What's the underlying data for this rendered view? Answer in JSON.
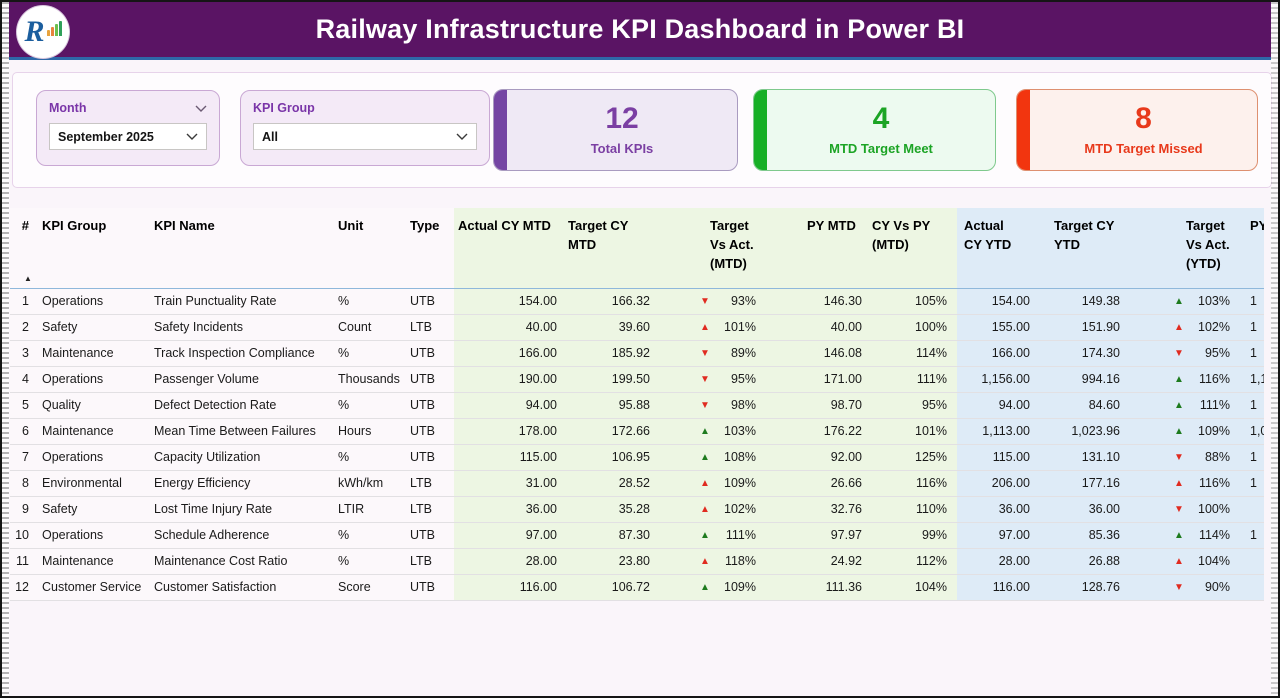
{
  "header": {
    "title": "Railway Infrastructure KPI Dashboard in Power BI",
    "logo_letter": "R"
  },
  "filters": {
    "month": {
      "label": "Month",
      "value": "September 2025"
    },
    "kpi_group": {
      "label": "KPI Group",
      "value": "All"
    }
  },
  "cards": [
    {
      "value": "12",
      "label": "Total KPIs",
      "accent": "#7445A3"
    },
    {
      "value": "4",
      "label": "MTD Target Meet",
      "accent": "#17AF26"
    },
    {
      "value": "8",
      "label": "MTD Target Missed",
      "accent": "#F2350F"
    }
  ],
  "colors": {
    "header_bg": "#5A1464",
    "header_underline": "#2E68A8",
    "mtd_section_bg": "#EDF6E3",
    "ytd_section_bg": "#DEEBF7",
    "arrow_green": "#1E7B1E",
    "arrow_red": "#E02B20"
  },
  "table": {
    "sort_indicator": "▲",
    "icons": {
      "up": "▲",
      "down": "▼"
    },
    "columns": [
      {
        "label": "#"
      },
      {
        "label": "KPI Group"
      },
      {
        "label": "KPI Name"
      },
      {
        "label": "Unit"
      },
      {
        "label": "Type"
      },
      {
        "label": "Actual CY MTD"
      },
      {
        "label": "Target CY MTD"
      },
      {
        "label": "Target Vs Act. (MTD)"
      },
      {
        "label": "PY MTD"
      },
      {
        "label": "CY Vs PY (MTD)"
      },
      {
        "label": "Actual CY YTD"
      },
      {
        "label": "Target CY YTD"
      },
      {
        "label": "Target Vs Act. (YTD)"
      },
      {
        "label": "PY"
      }
    ],
    "rows": [
      {
        "num": "1",
        "group": "Operations",
        "name": "Train Punctuality Rate",
        "unit": "%",
        "type": "UTB",
        "actual_mtd": "154.00",
        "target_mtd": "166.32",
        "tva_mtd": {
          "dir": "down",
          "color": "red",
          "value": "93%"
        },
        "py_mtd": "146.30",
        "cy_vs_py_mtd": "105%",
        "actual_ytd": "154.00",
        "target_ytd": "149.38",
        "tva_ytd": {
          "dir": "up",
          "color": "green",
          "value": "103%"
        },
        "py_ytd": "1"
      },
      {
        "num": "2",
        "group": "Safety",
        "name": "Safety Incidents",
        "unit": "Count",
        "type": "LTB",
        "actual_mtd": "40.00",
        "target_mtd": "39.60",
        "tva_mtd": {
          "dir": "up",
          "color": "red",
          "value": "101%"
        },
        "py_mtd": "40.00",
        "cy_vs_py_mtd": "100%",
        "actual_ytd": "155.00",
        "target_ytd": "151.90",
        "tva_ytd": {
          "dir": "up",
          "color": "red",
          "value": "102%"
        },
        "py_ytd": "1"
      },
      {
        "num": "3",
        "group": "Maintenance",
        "name": "Track Inspection Compliance",
        "unit": "%",
        "type": "UTB",
        "actual_mtd": "166.00",
        "target_mtd": "185.92",
        "tva_mtd": {
          "dir": "down",
          "color": "red",
          "value": "89%"
        },
        "py_mtd": "146.08",
        "cy_vs_py_mtd": "114%",
        "actual_ytd": "166.00",
        "target_ytd": "174.30",
        "tva_ytd": {
          "dir": "down",
          "color": "red",
          "value": "95%"
        },
        "py_ytd": "1"
      },
      {
        "num": "4",
        "group": "Operations",
        "name": "Passenger Volume",
        "unit": "Thousands",
        "type": "UTB",
        "actual_mtd": "190.00",
        "target_mtd": "199.50",
        "tva_mtd": {
          "dir": "down",
          "color": "red",
          "value": "95%"
        },
        "py_mtd": "171.00",
        "cy_vs_py_mtd": "111%",
        "actual_ytd": "1,156.00",
        "target_ytd": "994.16",
        "tva_ytd": {
          "dir": "up",
          "color": "green",
          "value": "116%"
        },
        "py_ytd": "1,1"
      },
      {
        "num": "5",
        "group": "Quality",
        "name": "Defect Detection Rate",
        "unit": "%",
        "type": "UTB",
        "actual_mtd": "94.00",
        "target_mtd": "95.88",
        "tva_mtd": {
          "dir": "down",
          "color": "red",
          "value": "98%"
        },
        "py_mtd": "98.70",
        "cy_vs_py_mtd": "95%",
        "actual_ytd": "94.00",
        "target_ytd": "84.60",
        "tva_ytd": {
          "dir": "up",
          "color": "green",
          "value": "111%"
        },
        "py_ytd": "1"
      },
      {
        "num": "6",
        "group": "Maintenance",
        "name": "Mean Time Between Failures",
        "unit": "Hours",
        "type": "UTB",
        "actual_mtd": "178.00",
        "target_mtd": "172.66",
        "tva_mtd": {
          "dir": "up",
          "color": "green",
          "value": "103%"
        },
        "py_mtd": "176.22",
        "cy_vs_py_mtd": "101%",
        "actual_ytd": "1,113.00",
        "target_ytd": "1,023.96",
        "tva_ytd": {
          "dir": "up",
          "color": "green",
          "value": "109%"
        },
        "py_ytd": "1,0"
      },
      {
        "num": "7",
        "group": "Operations",
        "name": "Capacity Utilization",
        "unit": "%",
        "type": "UTB",
        "actual_mtd": "115.00",
        "target_mtd": "106.95",
        "tva_mtd": {
          "dir": "up",
          "color": "green",
          "value": "108%"
        },
        "py_mtd": "92.00",
        "cy_vs_py_mtd": "125%",
        "actual_ytd": "115.00",
        "target_ytd": "131.10",
        "tva_ytd": {
          "dir": "down",
          "color": "red",
          "value": "88%"
        },
        "py_ytd": "1"
      },
      {
        "num": "8",
        "group": "Environmental",
        "name": "Energy Efficiency",
        "unit": "kWh/km",
        "type": "LTB",
        "actual_mtd": "31.00",
        "target_mtd": "28.52",
        "tva_mtd": {
          "dir": "up",
          "color": "red",
          "value": "109%"
        },
        "py_mtd": "26.66",
        "cy_vs_py_mtd": "116%",
        "actual_ytd": "206.00",
        "target_ytd": "177.16",
        "tva_ytd": {
          "dir": "up",
          "color": "red",
          "value": "116%"
        },
        "py_ytd": "1"
      },
      {
        "num": "9",
        "group": "Safety",
        "name": "Lost Time Injury Rate",
        "unit": "LTIR",
        "type": "LTB",
        "actual_mtd": "36.00",
        "target_mtd": "35.28",
        "tva_mtd": {
          "dir": "up",
          "color": "red",
          "value": "102%"
        },
        "py_mtd": "32.76",
        "cy_vs_py_mtd": "110%",
        "actual_ytd": "36.00",
        "target_ytd": "36.00",
        "tva_ytd": {
          "dir": "down",
          "color": "red",
          "value": "100%"
        },
        "py_ytd": ""
      },
      {
        "num": "10",
        "group": "Operations",
        "name": "Schedule Adherence",
        "unit": "%",
        "type": "UTB",
        "actual_mtd": "97.00",
        "target_mtd": "87.30",
        "tva_mtd": {
          "dir": "up",
          "color": "green",
          "value": "111%"
        },
        "py_mtd": "97.97",
        "cy_vs_py_mtd": "99%",
        "actual_ytd": "97.00",
        "target_ytd": "85.36",
        "tva_ytd": {
          "dir": "up",
          "color": "green",
          "value": "114%"
        },
        "py_ytd": "1"
      },
      {
        "num": "11",
        "group": "Maintenance",
        "name": "Maintenance Cost Ratio",
        "unit": "%",
        "type": "LTB",
        "actual_mtd": "28.00",
        "target_mtd": "23.80",
        "tva_mtd": {
          "dir": "up",
          "color": "red",
          "value": "118%"
        },
        "py_mtd": "24.92",
        "cy_vs_py_mtd": "112%",
        "actual_ytd": "28.00",
        "target_ytd": "26.88",
        "tva_ytd": {
          "dir": "up",
          "color": "red",
          "value": "104%"
        },
        "py_ytd": ""
      },
      {
        "num": "12",
        "group": "Customer Service",
        "name": "Customer Satisfaction",
        "unit": "Score",
        "type": "UTB",
        "actual_mtd": "116.00",
        "target_mtd": "106.72",
        "tva_mtd": {
          "dir": "up",
          "color": "green",
          "value": "109%"
        },
        "py_mtd": "111.36",
        "cy_vs_py_mtd": "104%",
        "actual_ytd": "116.00",
        "target_ytd": "128.76",
        "tva_ytd": {
          "dir": "down",
          "color": "red",
          "value": "90%"
        },
        "py_ytd": ""
      }
    ]
  }
}
